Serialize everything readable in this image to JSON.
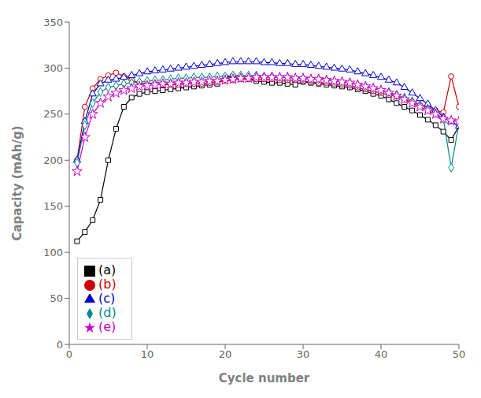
{
  "chart_data": {
    "type": "line",
    "xlabel": "Cycle number",
    "ylabel": "Capacity (mAh/g)",
    "xlim": [
      0,
      50
    ],
    "ylim": [
      0,
      350
    ],
    "xticks": [
      0,
      10,
      20,
      30,
      40,
      50
    ],
    "yticks": [
      0,
      50,
      100,
      150,
      200,
      250,
      300,
      350
    ],
    "grid": false,
    "legend": "lower left",
    "x": [
      1,
      2,
      3,
      4,
      5,
      6,
      7,
      8,
      9,
      10,
      11,
      12,
      13,
      14,
      15,
      16,
      17,
      18,
      19,
      20,
      21,
      22,
      23,
      24,
      25,
      26,
      27,
      28,
      29,
      30,
      31,
      32,
      33,
      34,
      35,
      36,
      37,
      38,
      39,
      40,
      41,
      42,
      43,
      44,
      45,
      46,
      47,
      48,
      49,
      50
    ],
    "series": [
      {
        "name": "(a)",
        "color": "#000000",
        "marker": "square",
        "values": [
          112,
          122,
          135,
          157,
          200,
          234,
          258,
          268,
          272,
          274,
          275,
          276,
          277,
          278,
          279,
          280,
          281,
          282,
          283,
          290,
          291,
          290,
          288,
          286,
          285,
          284,
          284,
          283,
          282,
          285,
          284,
          283,
          282,
          281,
          280,
          279,
          277,
          275,
          272,
          270,
          266,
          262,
          258,
          254,
          249,
          244,
          238,
          231,
          222,
          237
        ]
      },
      {
        "name": "(b)",
        "color": "#cc0000",
        "marker": "circle",
        "values": [
          200,
          258,
          278,
          288,
          292,
          295,
          291,
          287,
          284,
          283,
          283,
          282,
          282,
          282,
          283,
          283,
          283,
          284,
          285,
          286,
          287,
          288,
          288,
          288,
          288,
          288,
          287,
          287,
          287,
          286,
          285,
          284,
          284,
          283,
          282,
          281,
          279,
          277,
          275,
          273,
          271,
          269,
          266,
          263,
          260,
          257,
          254,
          252,
          291,
          258
        ]
      },
      {
        "name": "(c)",
        "color": "#0000cc",
        "marker": "triangle",
        "values": [
          200,
          242,
          272,
          283,
          287,
          288,
          290,
          292,
          294,
          296,
          297,
          298,
          299,
          300,
          301,
          302,
          303,
          304,
          305,
          306,
          307,
          307,
          307,
          307,
          306,
          306,
          305,
          305,
          304,
          304,
          303,
          302,
          301,
          300,
          299,
          298,
          296,
          294,
          292,
          290,
          287,
          284,
          279,
          273,
          267,
          261,
          254,
          247,
          242,
          237
        ]
      },
      {
        "name": "(d)",
        "color": "#008888",
        "marker": "diamond",
        "values": [
          197,
          238,
          262,
          274,
          279,
          281,
          283,
          284,
          285,
          286,
          287,
          287,
          288,
          289,
          289,
          290,
          290,
          290,
          291,
          291,
          292,
          292,
          292,
          292,
          291,
          291,
          290,
          290,
          289,
          289,
          288,
          288,
          287,
          286,
          285,
          284,
          282,
          280,
          278,
          276,
          274,
          271,
          268,
          264,
          260,
          256,
          251,
          245,
          192,
          240
        ]
      },
      {
        "name": "(e)",
        "color": "#cc00cc",
        "marker": "star",
        "values": [
          188,
          225,
          250,
          262,
          269,
          273,
          276,
          278,
          280,
          281,
          282,
          283,
          283,
          284,
          284,
          285,
          285,
          286,
          286,
          287,
          288,
          289,
          289,
          290,
          290,
          290,
          290,
          290,
          289,
          289,
          288,
          288,
          287,
          286,
          285,
          284,
          282,
          280,
          278,
          276,
          273,
          270,
          266,
          262,
          258,
          254,
          250,
          245,
          243,
          242
        ]
      }
    ]
  }
}
